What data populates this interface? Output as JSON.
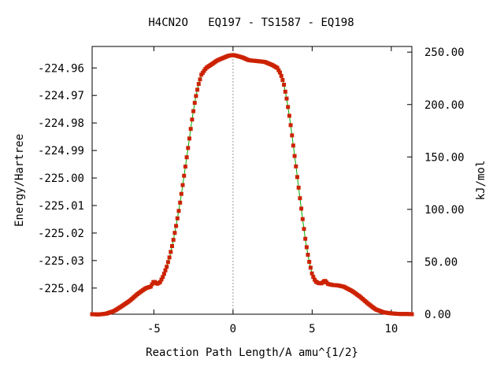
{
  "chart_data": {
    "type": "line",
    "title": "H4CN2O   EQ197 - TS1587 - EQ198",
    "xlabel": "Reaction Path Length/A amu^{1/2}",
    "ylabel": "Energy/Hartree",
    "y2label": "kJ/mol",
    "xlim": [
      -8.9,
      11.3
    ],
    "ylim": [
      -225.0495,
      -224.9522
    ],
    "y2lim": [
      0,
      255.4
    ],
    "x_ticks": [
      -5,
      0,
      5,
      10
    ],
    "x_tick_labels": [
      "-5",
      "0",
      "5",
      "10"
    ],
    "y_ticks": [
      -224.96,
      -224.97,
      -224.98,
      -224.99,
      -225.0,
      -225.01,
      -225.02,
      -225.03,
      -225.04
    ],
    "y_tick_labels": [
      "-224.96",
      "-224.97",
      "-224.98",
      "-224.99",
      "-225.00",
      "-225.01",
      "-225.02",
      "-225.03",
      "-225.04"
    ],
    "y2_ticks": [
      250,
      200,
      150,
      100,
      50,
      0
    ],
    "y2_tick_labels": [
      "250.00",
      "200.00",
      "150.00",
      "100.00",
      "50.00",
      "0.00"
    ],
    "ts_marker_x": 0,
    "grid": false,
    "legend": "none",
    "colors": {
      "points": "#cc2200",
      "line": "#00aa00",
      "ts_line": "#999999",
      "axes": "#000000"
    },
    "x": [
      -8.9,
      -8.5,
      -8.0,
      -7.5,
      -7.0,
      -6.5,
      -6.0,
      -5.5,
      -5.2,
      -5.0,
      -4.8,
      -4.6,
      -4.4,
      -4.2,
      -4.0,
      -3.8,
      -3.6,
      -3.4,
      -3.2,
      -3.0,
      -2.8,
      -2.6,
      -2.4,
      -2.2,
      -2.0,
      -1.7,
      -1.3,
      -1.0,
      -0.6,
      -0.3,
      0.0,
      0.3,
      0.6,
      1.0,
      1.5,
      2.0,
      2.5,
      2.8,
      3.0,
      3.2,
      3.4,
      3.6,
      3.8,
      4.0,
      4.2,
      4.4,
      4.6,
      4.8,
      5.0,
      5.2,
      5.4,
      5.6,
      5.8,
      6.0,
      6.3,
      6.6,
      7.0,
      7.5,
      8.0,
      8.5,
      9.0,
      9.5,
      10.0,
      10.5,
      11.0,
      11.3
    ],
    "y": [
      -225.0495,
      -225.0496,
      -225.0493,
      -225.0483,
      -225.0465,
      -225.0445,
      -225.042,
      -225.04,
      -225.0395,
      -225.0375,
      -225.0385,
      -225.0378,
      -225.0355,
      -225.0325,
      -225.0285,
      -225.0235,
      -225.0175,
      -225.011,
      -225.0035,
      -224.9955,
      -224.9875,
      -224.9792,
      -224.972,
      -224.9665,
      -224.9625,
      -224.96,
      -224.9585,
      -224.9573,
      -224.9563,
      -224.9556,
      -224.9553,
      -224.9557,
      -224.9562,
      -224.9572,
      -224.9575,
      -224.9578,
      -224.959,
      -224.96,
      -224.962,
      -224.9655,
      -224.9715,
      -224.979,
      -224.9878,
      -224.9968,
      -225.006,
      -225.015,
      -225.0235,
      -225.03,
      -225.035,
      -225.0375,
      -225.0382,
      -225.0383,
      -225.0372,
      -225.0385,
      -225.0389,
      -225.039,
      -225.0395,
      -225.041,
      -225.043,
      -225.0455,
      -225.0477,
      -225.0488,
      -225.0492,
      -225.0494,
      -225.0494,
      -225.0495
    ]
  }
}
